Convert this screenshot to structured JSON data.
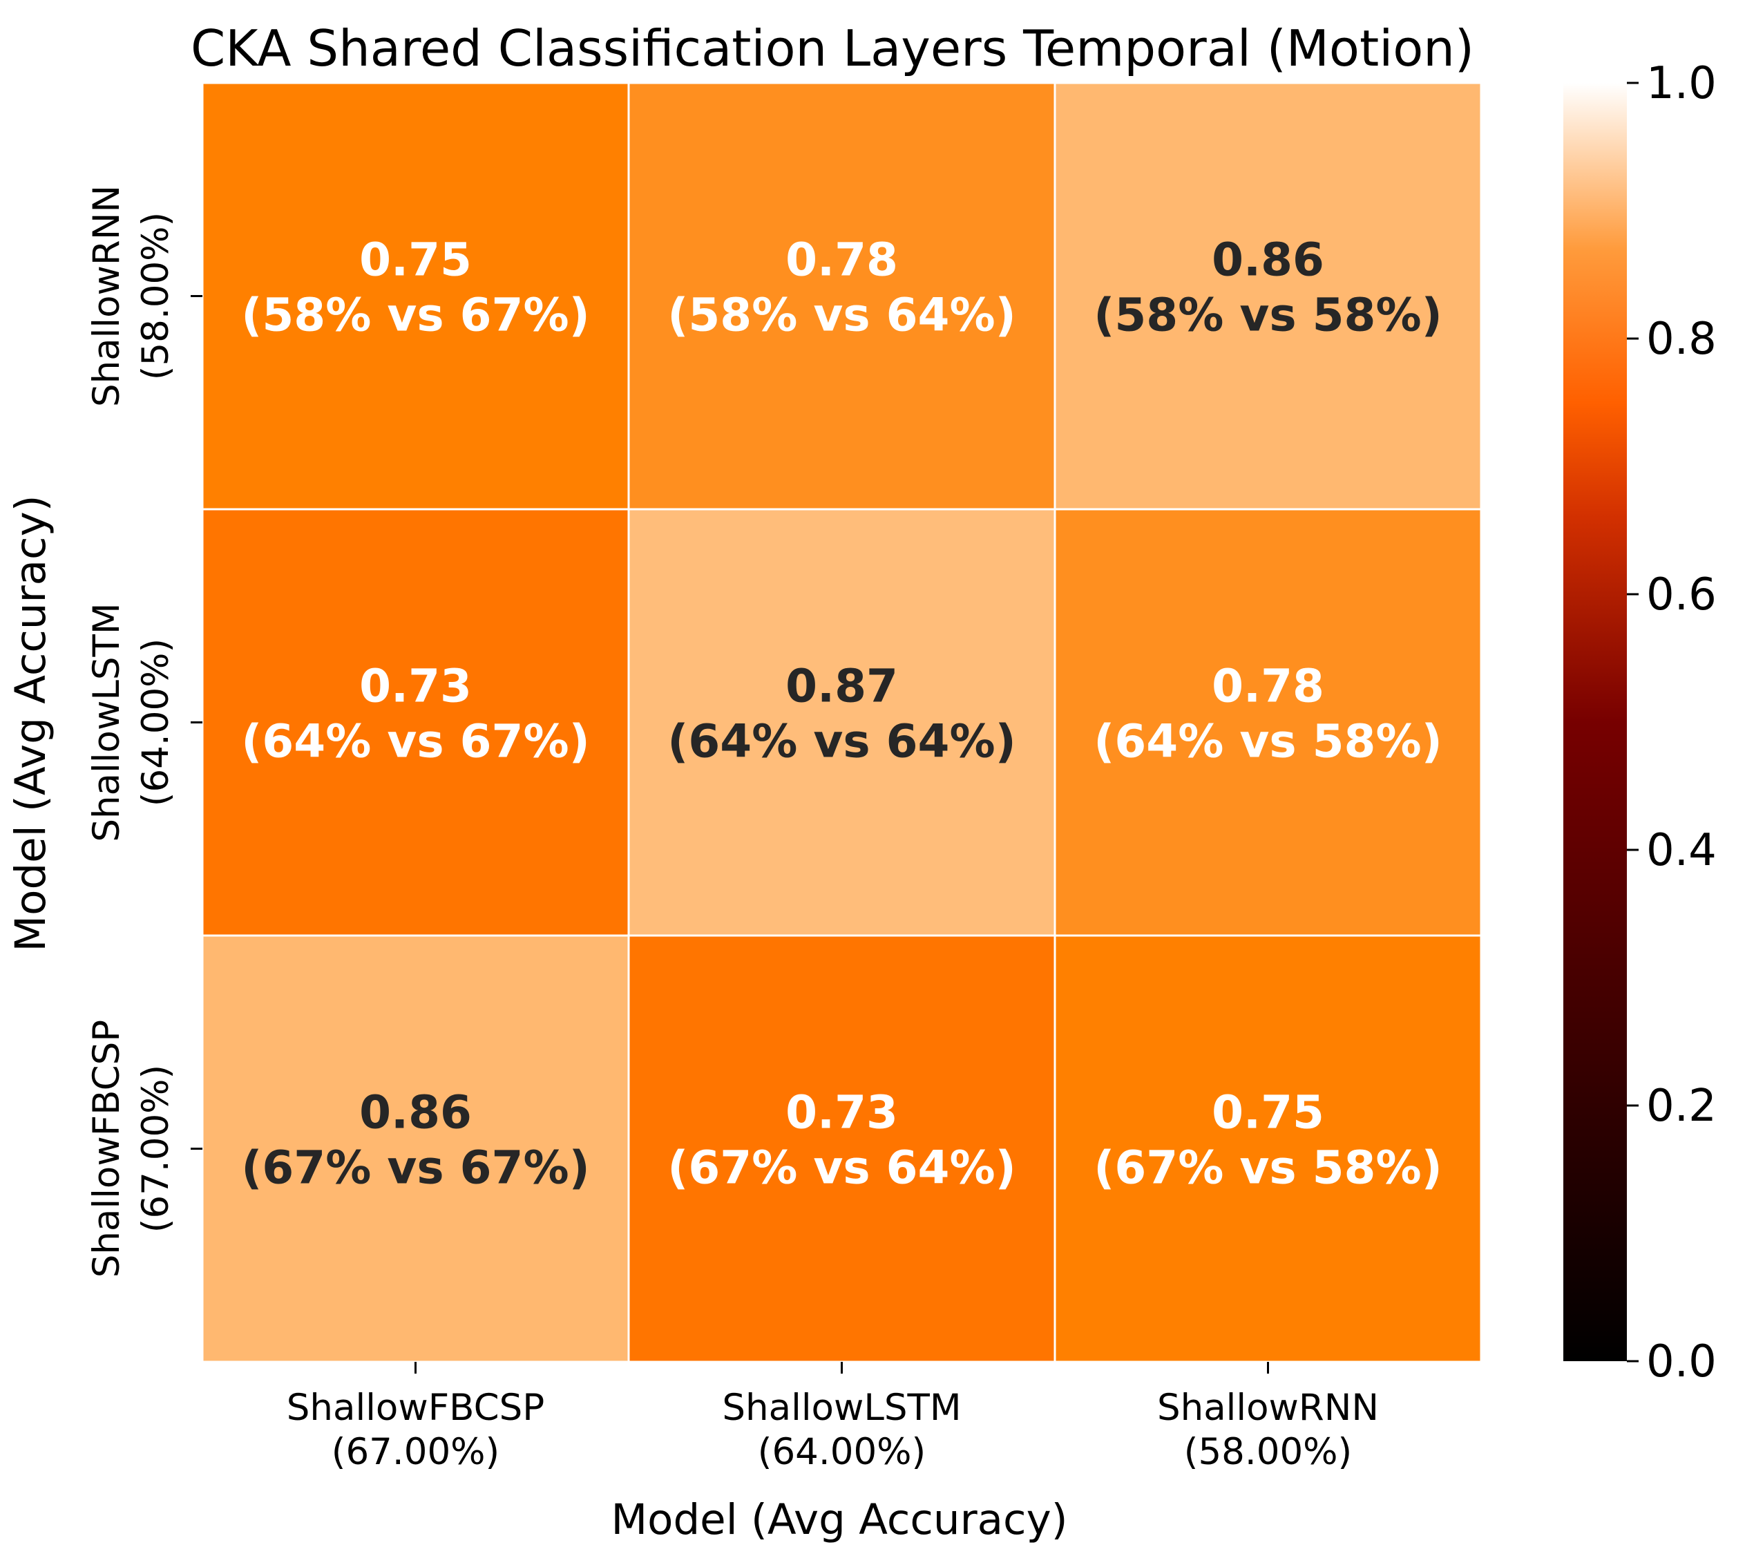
{
  "chart_data": {
    "type": "heatmap",
    "title": "CKA Shared Classification Layers Temporal (Motion)",
    "xlabel": "Model (Avg Accuracy)",
    "ylabel": "Model (Avg Accuracy)",
    "x_tick_labels": [
      [
        "ShallowFBCSP",
        "(67.00%)"
      ],
      [
        "ShallowLSTM",
        "(64.00%)"
      ],
      [
        "ShallowRNN",
        "(58.00%)"
      ]
    ],
    "y_tick_labels": [
      [
        "ShallowRNN",
        "(58.00%)"
      ],
      [
        "ShallowLSTM",
        "(64.00%)"
      ],
      [
        "ShallowFBCSP",
        "(67.00%)"
      ]
    ],
    "values": [
      [
        0.75,
        0.78,
        0.86
      ],
      [
        0.73,
        0.87,
        0.78
      ],
      [
        0.86,
        0.73,
        0.75
      ]
    ],
    "value_labels": [
      [
        "0.75",
        "0.78",
        "0.86"
      ],
      [
        "0.73",
        "0.87",
        "0.78"
      ],
      [
        "0.86",
        "0.73",
        "0.75"
      ]
    ],
    "annotations": [
      [
        "(58% vs 67%)",
        "(58% vs 64%)",
        "(58% vs 58%)"
      ],
      [
        "(64% vs 67%)",
        "(64% vs 64%)",
        "(64% vs 58%)"
      ],
      [
        "(67% vs 67%)",
        "(67% vs 64%)",
        "(67% vs 58%)"
      ]
    ],
    "colorbar": {
      "range": [
        0.0,
        1.0
      ],
      "ticks": [
        "0.0",
        "0.2",
        "0.4",
        "0.6",
        "0.8",
        "1.0"
      ],
      "colormap": "gist_heat"
    },
    "colors": {
      "light_text": "#ffffff",
      "dark_text": "#262626",
      "cell_border": "#ffffff"
    },
    "grid": false
  }
}
